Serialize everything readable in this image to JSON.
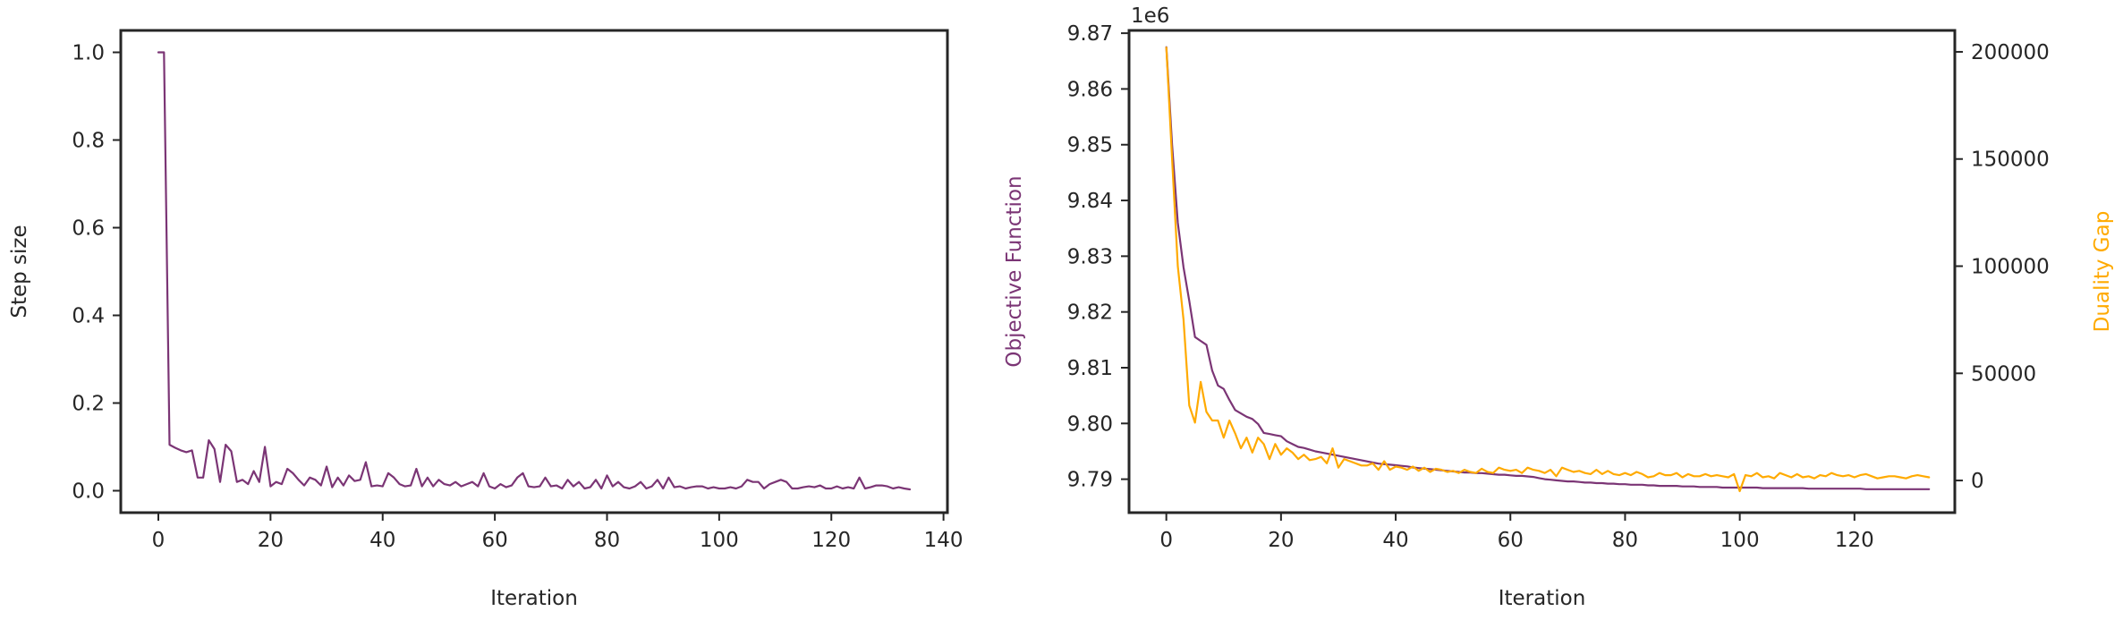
{
  "chart_data": [
    {
      "type": "line",
      "xlabel": "Iteration",
      "ylabel": "Step size",
      "xlim": [
        -6.7,
        140.7
      ],
      "ylim": [
        -0.05,
        1.05
      ],
      "xticks": [
        0,
        20,
        40,
        60,
        80,
        100,
        120,
        140
      ],
      "yticks": [
        0.0,
        0.2,
        0.4,
        0.6,
        0.8,
        1.0
      ],
      "xtick_labels": [
        "0",
        "20",
        "40",
        "60",
        "80",
        "100",
        "120",
        "140"
      ],
      "ytick_labels": [
        "0.0",
        "0.2",
        "0.4",
        "0.6",
        "0.8",
        "1.0"
      ],
      "grid": false,
      "series": [
        {
          "color": "#7b3575",
          "x": [
            0,
            1,
            2,
            3,
            4,
            5,
            6,
            7,
            8,
            9,
            10,
            11,
            12,
            13,
            14,
            15,
            16,
            17,
            18,
            19,
            20,
            21,
            22,
            23,
            24,
            25,
            26,
            27,
            28,
            29,
            30,
            31,
            32,
            33,
            34,
            35,
            36,
            37,
            38,
            39,
            40,
            41,
            42,
            43,
            44,
            45,
            46,
            47,
            48,
            49,
            50,
            51,
            52,
            53,
            54,
            55,
            56,
            57,
            58,
            59,
            60,
            61,
            62,
            63,
            64,
            65,
            66,
            67,
            68,
            69,
            70,
            71,
            72,
            73,
            74,
            75,
            76,
            77,
            78,
            79,
            80,
            81,
            82,
            83,
            84,
            85,
            86,
            87,
            88,
            89,
            90,
            91,
            92,
            93,
            94,
            95,
            96,
            97,
            98,
            99,
            100,
            101,
            102,
            103,
            104,
            105,
            106,
            107,
            108,
            109,
            110,
            111,
            112,
            113,
            114,
            115,
            116,
            117,
            118,
            119,
            120,
            121,
            122,
            123,
            124,
            125,
            126,
            127,
            128,
            129,
            130,
            131,
            132,
            133,
            134
          ],
          "values": [
            1.0,
            1.0,
            0.105,
            0.098,
            0.092,
            0.088,
            0.092,
            0.03,
            0.03,
            0.115,
            0.095,
            0.02,
            0.105,
            0.09,
            0.02,
            0.025,
            0.015,
            0.045,
            0.02,
            0.1,
            0.01,
            0.02,
            0.015,
            0.05,
            0.04,
            0.025,
            0.012,
            0.03,
            0.025,
            0.012,
            0.055,
            0.008,
            0.03,
            0.012,
            0.035,
            0.022,
            0.025,
            0.065,
            0.01,
            0.012,
            0.01,
            0.04,
            0.03,
            0.015,
            0.01,
            0.012,
            0.05,
            0.01,
            0.03,
            0.01,
            0.025,
            0.015,
            0.012,
            0.02,
            0.01,
            0.015,
            0.02,
            0.01,
            0.04,
            0.01,
            0.005,
            0.015,
            0.008,
            0.012,
            0.03,
            0.04,
            0.01,
            0.008,
            0.01,
            0.03,
            0.01,
            0.012,
            0.005,
            0.025,
            0.01,
            0.02,
            0.005,
            0.008,
            0.025,
            0.005,
            0.035,
            0.01,
            0.02,
            0.008,
            0.005,
            0.01,
            0.02,
            0.005,
            0.01,
            0.025,
            0.005,
            0.03,
            0.008,
            0.01,
            0.005,
            0.008,
            0.01,
            0.01,
            0.005,
            0.008,
            0.005,
            0.005,
            0.008,
            0.005,
            0.01,
            0.025,
            0.02,
            0.02,
            0.005,
            0.015,
            0.02,
            0.025,
            0.02,
            0.005,
            0.005,
            0.008,
            0.01,
            0.008,
            0.012,
            0.005,
            0.005,
            0.01,
            0.005,
            0.008,
            0.005,
            0.03,
            0.005,
            0.008,
            0.012,
            0.012,
            0.01,
            0.005,
            0.008,
            0.005,
            0.003
          ]
        }
      ]
    },
    {
      "type": "line",
      "xlabel": "Iteration",
      "ylabel": "Objective Function",
      "ylabel_color": "#7b3575",
      "y2label": "Duality Gap",
      "y2label_color": "#ffaa00",
      "offset_text": "1e6",
      "xlim": [
        -6.5,
        137.5
      ],
      "ylim": [
        9.784,
        9.8705
      ],
      "y2lim": [
        -15000,
        210000
      ],
      "xticks": [
        0,
        20,
        40,
        60,
        80,
        100,
        120
      ],
      "xtick_labels": [
        "0",
        "20",
        "40",
        "60",
        "80",
        "100",
        "120"
      ],
      "yticks": [
        9.79,
        9.8,
        9.81,
        9.82,
        9.83,
        9.84,
        9.85,
        9.86,
        9.87
      ],
      "ytick_labels": [
        "9.79",
        "9.80",
        "9.81",
        "9.82",
        "9.83",
        "9.84",
        "9.85",
        "9.86",
        "9.87"
      ],
      "y2ticks": [
        0,
        50000,
        100000,
        150000,
        200000
      ],
      "y2tick_labels": [
        "0",
        "50000",
        "100000",
        "150000",
        "200000"
      ],
      "grid": false,
      "series": [
        {
          "axis": "left",
          "color": "#7b3575",
          "x": [
            0,
            1,
            2,
            3,
            4,
            5,
            6,
            7,
            8,
            9,
            10,
            11,
            12,
            13,
            14,
            15,
            16,
            17,
            18,
            19,
            20,
            21,
            22,
            23,
            24,
            25,
            26,
            27,
            28,
            29,
            30,
            31,
            32,
            33,
            34,
            35,
            36,
            37,
            38,
            39,
            40,
            41,
            42,
            43,
            44,
            45,
            46,
            47,
            48,
            49,
            50,
            51,
            52,
            53,
            54,
            55,
            56,
            57,
            58,
            59,
            60,
            61,
            62,
            63,
            64,
            65,
            66,
            67,
            68,
            69,
            70,
            71,
            72,
            73,
            74,
            75,
            76,
            77,
            78,
            79,
            80,
            81,
            82,
            83,
            84,
            85,
            86,
            87,
            88,
            89,
            90,
            91,
            92,
            93,
            94,
            95,
            96,
            97,
            98,
            99,
            100,
            101,
            102,
            103,
            104,
            105,
            106,
            107,
            108,
            109,
            110,
            111,
            112,
            113,
            114,
            115,
            116,
            117,
            118,
            119,
            120,
            121,
            122,
            123,
            124,
            125,
            126,
            127,
            128,
            129,
            130,
            131,
            132,
            133
          ],
          "values": [
            9.8675,
            9.85,
            9.836,
            9.828,
            9.822,
            9.8155,
            9.8148,
            9.8141,
            9.8095,
            9.8068,
            9.8062,
            9.8042,
            9.8024,
            9.8018,
            9.8012,
            9.8008,
            9.7999,
            9.7983,
            9.7981,
            9.7979,
            9.7977,
            9.7968,
            9.7963,
            9.7958,
            9.7956,
            9.7953,
            9.795,
            9.7948,
            9.7946,
            9.7944,
            9.7942,
            9.794,
            9.7938,
            9.7936,
            9.7934,
            9.7932,
            9.793,
            9.7928,
            9.7927,
            9.7926,
            9.7925,
            9.7924,
            9.7923,
            9.7921,
            9.792,
            9.7919,
            9.7918,
            9.7917,
            9.7916,
            9.7915,
            9.7914,
            9.7913,
            9.7912,
            9.7912,
            9.7911,
            9.7911,
            9.791,
            9.7909,
            9.7908,
            9.7908,
            9.7907,
            9.7906,
            9.7906,
            9.7905,
            9.7904,
            9.7902,
            9.79,
            9.7899,
            9.7898,
            9.7897,
            9.7896,
            9.7896,
            9.7895,
            9.7894,
            9.7894,
            9.7893,
            9.7893,
            9.7892,
            9.7892,
            9.7891,
            9.7891,
            9.789,
            9.789,
            9.789,
            9.7889,
            9.7889,
            9.7888,
            9.7888,
            9.7888,
            9.7888,
            9.7887,
            9.7887,
            9.7887,
            9.7886,
            9.7886,
            9.7886,
            9.7886,
            9.7885,
            9.7885,
            9.7885,
            9.7885,
            9.7885,
            9.7885,
            9.7885,
            9.7884,
            9.7884,
            9.7884,
            9.7884,
            9.7884,
            9.7884,
            9.7884,
            9.7884,
            9.7883,
            9.7883,
            9.7883,
            9.7883,
            9.7883,
            9.7883,
            9.7883,
            9.7883,
            9.7883,
            9.7883,
            9.7882,
            9.7882,
            9.7882,
            9.7882,
            9.7882,
            9.7882,
            9.7882,
            9.7882,
            9.7882,
            9.7882,
            9.7882,
            9.7882
          ]
        },
        {
          "axis": "right",
          "color": "#ffaa00",
          "x": [
            0,
            1,
            2,
            3,
            4,
            5,
            6,
            7,
            8,
            9,
            10,
            11,
            12,
            13,
            14,
            15,
            16,
            17,
            18,
            19,
            20,
            21,
            22,
            23,
            24,
            25,
            26,
            27,
            28,
            29,
            30,
            31,
            32,
            33,
            34,
            35,
            36,
            37,
            38,
            39,
            40,
            41,
            42,
            43,
            44,
            45,
            46,
            47,
            48,
            49,
            50,
            51,
            52,
            53,
            54,
            55,
            56,
            57,
            58,
            59,
            60,
            61,
            62,
            63,
            64,
            65,
            66,
            67,
            68,
            69,
            70,
            71,
            72,
            73,
            74,
            75,
            76,
            77,
            78,
            79,
            80,
            81,
            82,
            83,
            84,
            85,
            86,
            87,
            88,
            89,
            90,
            91,
            92,
            93,
            94,
            95,
            96,
            97,
            98,
            99,
            100,
            101,
            102,
            103,
            104,
            105,
            106,
            107,
            108,
            109,
            110,
            111,
            112,
            113,
            114,
            115,
            116,
            117,
            118,
            119,
            120,
            121,
            122,
            123,
            124,
            125,
            126,
            127,
            128,
            129,
            130,
            131,
            132,
            133
          ],
          "values": [
            202000,
            150000,
            100000,
            75000,
            35000,
            27000,
            46000,
            32000,
            28000,
            28000,
            20000,
            28000,
            22000,
            15000,
            20000,
            13000,
            20000,
            17000,
            10000,
            17000,
            12000,
            15000,
            13000,
            10000,
            12000,
            9500,
            10000,
            11000,
            8000,
            15000,
            6000,
            10000,
            9000,
            8000,
            7000,
            7000,
            8000,
            5000,
            9000,
            5000,
            6500,
            6000,
            5000,
            6500,
            4500,
            6000,
            4000,
            5500,
            5000,
            4000,
            4500,
            3500,
            5000,
            4000,
            3500,
            5500,
            4000,
            3500,
            6000,
            5000,
            4500,
            5000,
            3500,
            6000,
            5000,
            4500,
            3500,
            5000,
            2000,
            6000,
            5000,
            4000,
            4500,
            3500,
            3000,
            5000,
            3000,
            4500,
            3000,
            2500,
            3500,
            2500,
            4000,
            3000,
            1500,
            2000,
            3500,
            2500,
            2500,
            3500,
            1500,
            3000,
            2000,
            2000,
            3000,
            2000,
            2500,
            2000,
            1500,
            3000,
            -5000,
            2500,
            2000,
            3500,
            1500,
            2000,
            1000,
            3500,
            2500,
            1500,
            3000,
            1500,
            2000,
            1000,
            2500,
            2000,
            3500,
            2500,
            2000,
            2500,
            1500,
            2500,
            3000,
            2000,
            1000,
            1500,
            2000,
            2000,
            1500,
            1000,
            2000,
            2500,
            2000,
            1500
          ]
        }
      ]
    }
  ]
}
